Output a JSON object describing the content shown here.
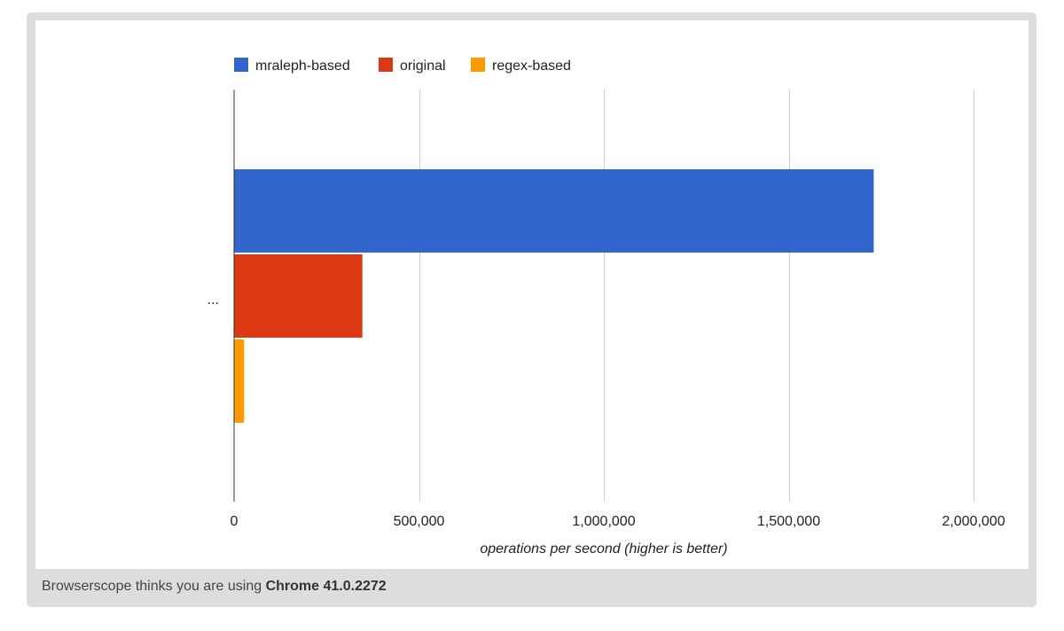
{
  "chart_data": {
    "type": "bar",
    "orientation": "horizontal",
    "categories": [
      "..."
    ],
    "series": [
      {
        "name": "mraleph-based",
        "color": "#3366cc",
        "values": [
          1730000
        ]
      },
      {
        "name": "original",
        "color": "#dc3912",
        "values": [
          347000
        ]
      },
      {
        "name": "regex-based",
        "color": "#ff9900",
        "values": [
          27000
        ]
      }
    ],
    "xlabel": "operations per second (higher is better)",
    "ylabel": "",
    "xlim": [
      0,
      2000000
    ],
    "x_ticks": [
      0,
      500000,
      1000000,
      1500000,
      2000000
    ],
    "x_tick_labels": [
      "0",
      "500,000",
      "1,000,000",
      "1,500,000",
      "2,000,000"
    ],
    "grid": true,
    "legend_position": "top"
  },
  "footer": {
    "prefix": "Browserscope thinks you are using ",
    "browser": "Chrome 41.0.2272"
  },
  "colors": {
    "frame": "#dddddd",
    "gridline": "#cccccc",
    "axis": "#333333"
  }
}
